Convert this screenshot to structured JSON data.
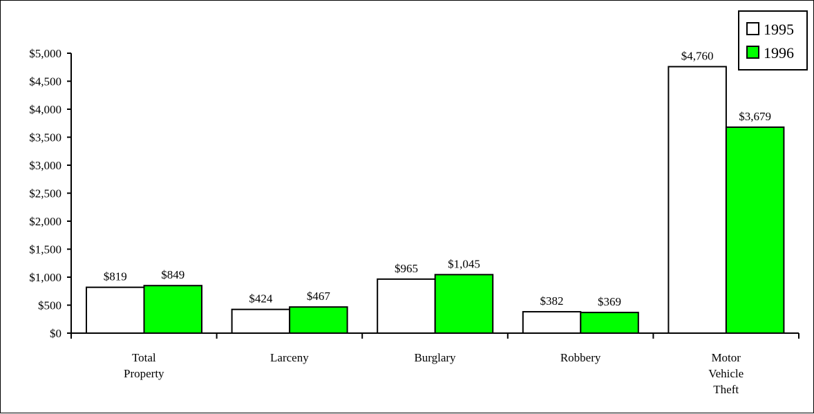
{
  "chart_data": {
    "type": "bar",
    "categories": [
      [
        "Total",
        "Property"
      ],
      [
        "Larceny"
      ],
      [
        "Burglary"
      ],
      [
        "Robbery"
      ],
      [
        "Motor",
        "Vehicle",
        "Theft"
      ]
    ],
    "series": [
      {
        "name": "1995",
        "color": "#ffffff",
        "values": [
          819,
          424,
          965,
          382,
          4760
        ],
        "labels": [
          "$819",
          "$424",
          "$965",
          "$382",
          "$4,760"
        ]
      },
      {
        "name": "1996",
        "color": "#00ff00",
        "values": [
          849,
          467,
          1045,
          369,
          3679
        ],
        "labels": [
          "$849",
          "$467",
          "$1,045",
          "$369",
          "$3,679"
        ]
      }
    ],
    "y_ticks": [
      0,
      500,
      1000,
      1500,
      2000,
      2500,
      3000,
      3500,
      4000,
      4500,
      5000
    ],
    "y_tick_labels": [
      "$0",
      "$500",
      "$1,000",
      "$1,500",
      "$2,000",
      "$2,500",
      "$3,000",
      "$3,500",
      "$4,000",
      "$4,500",
      "$5,000"
    ],
    "ylim": [
      0,
      5000
    ],
    "title": "",
    "xlabel": "",
    "ylabel": "",
    "legend_position": "top-right",
    "grid": false
  }
}
